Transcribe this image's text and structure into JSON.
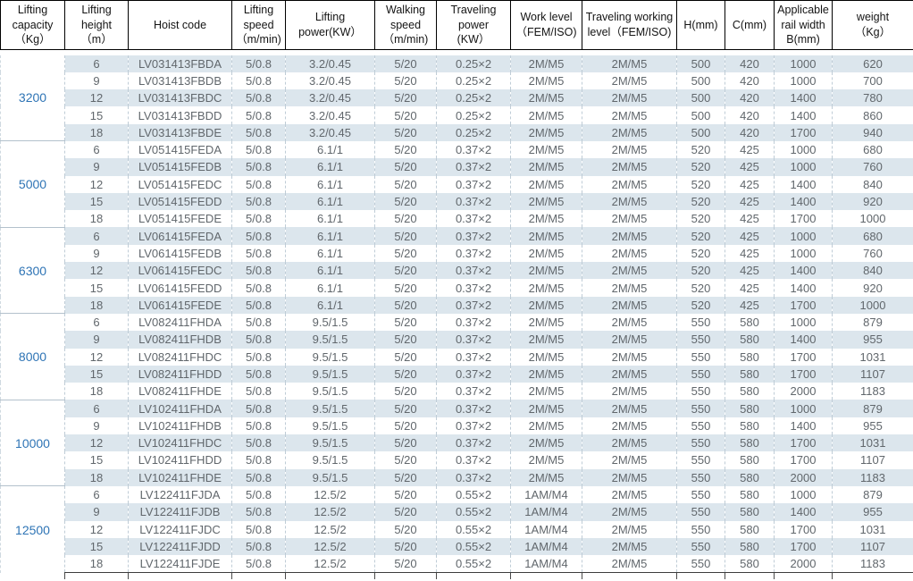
{
  "colors": {
    "accent_blue": "#2E74B5",
    "row_shade": "#DCE6ED",
    "body_text": "#61676C",
    "header_border": "#000000"
  },
  "table": {
    "headers": [
      "Lifting\ncapacity\n（Kg）",
      "Lifting\nheight\n（m）",
      "Hoist code",
      "Lifting\nspeed\n（m/min)",
      "Lifting\npower(KW）",
      "Walking\nspeed\n（m/min)",
      "Traveling\npower\n(KW）",
      "Work level\n（FEM/ISO)",
      "Traveling working\nlevel（FEM/ISO)",
      "H(mm)",
      "C(mm)",
      "Applicable\nrail width\nB(mm)",
      "weight\n（Kg）"
    ],
    "groups": [
      {
        "capacity": "3200",
        "rows": [
          [
            "6",
            "LV031413FBDA",
            "5/0.8",
            "3.2/0.45",
            "5/20",
            "0.25×2",
            "2M/M5",
            "2M/M5",
            "500",
            "420",
            "1000",
            "620"
          ],
          [
            "9",
            "LV031413FBDB",
            "5/0.8",
            "3.2/0.45",
            "5/20",
            "0.25×2",
            "2M/M5",
            "2M/M5",
            "500",
            "420",
            "1000",
            "700"
          ],
          [
            "12",
            "LV031413FBDC",
            "5/0.8",
            "3.2/0.45",
            "5/20",
            "0.25×2",
            "2M/M5",
            "2M/M5",
            "500",
            "420",
            "1400",
            "780"
          ],
          [
            "15",
            "LV031413FBDD",
            "5/0.8",
            "3.2/0.45",
            "5/20",
            "0.25×2",
            "2M/M5",
            "2M/M5",
            "500",
            "420",
            "1400",
            "860"
          ],
          [
            "18",
            "LV031413FBDE",
            "5/0.8",
            "3.2/0.45",
            "5/20",
            "0.25×2",
            "2M/M5",
            "2M/M5",
            "500",
            "420",
            "1700",
            "940"
          ]
        ]
      },
      {
        "capacity": "5000",
        "rows": [
          [
            "6",
            "LV051415FEDA",
            "5/0.8",
            "6.1/1",
            "5/20",
            "0.37×2",
            "2M/M5",
            "2M/M5",
            "520",
            "425",
            "1000",
            "680"
          ],
          [
            "9",
            "LV051415FEDB",
            "5/0.8",
            "6.1/1",
            "5/20",
            "0.37×2",
            "2M/M5",
            "2M/M5",
            "520",
            "425",
            "1000",
            "760"
          ],
          [
            "12",
            "LV051415FEDC",
            "5/0.8",
            "6.1/1",
            "5/20",
            "0.37×2",
            "2M/M5",
            "2M/M5",
            "520",
            "425",
            "1400",
            "840"
          ],
          [
            "15",
            "LV051415FEDD",
            "5/0.8",
            "6.1/1",
            "5/20",
            "0.37×2",
            "2M/M5",
            "2M/M5",
            "520",
            "425",
            "1400",
            "920"
          ],
          [
            "18",
            "LV051415FEDE",
            "5/0.8",
            "6.1/1",
            "5/20",
            "0.37×2",
            "2M/M5",
            "2M/M5",
            "520",
            "425",
            "1700",
            "1000"
          ]
        ]
      },
      {
        "capacity": "6300",
        "rows": [
          [
            "6",
            "LV061415FEDA",
            "5/0.8",
            "6.1/1",
            "5/20",
            "0.37×2",
            "2M/M5",
            "2M/M5",
            "520",
            "425",
            "1000",
            "680"
          ],
          [
            "9",
            "LV061415FEDB",
            "5/0.8",
            "6.1/1",
            "5/20",
            "0.37×2",
            "2M/M5",
            "2M/M5",
            "520",
            "425",
            "1000",
            "760"
          ],
          [
            "12",
            "LV061415FEDC",
            "5/0.8",
            "6.1/1",
            "5/20",
            "0.37×2",
            "2M/M5",
            "2M/M5",
            "520",
            "425",
            "1400",
            "840"
          ],
          [
            "15",
            "LV061415FEDD",
            "5/0.8",
            "6.1/1",
            "5/20",
            "0.37×2",
            "2M/M5",
            "2M/M5",
            "520",
            "425",
            "1400",
            "920"
          ],
          [
            "18",
            "LV061415FEDE",
            "5/0.8",
            "6.1/1",
            "5/20",
            "0.37×2",
            "2M/M5",
            "2M/M5",
            "520",
            "425",
            "1700",
            "1000"
          ]
        ]
      },
      {
        "capacity": "8000",
        "rows": [
          [
            "6",
            "LV082411FHDA",
            "5/0.8",
            "9.5/1.5",
            "5/20",
            "0.37×2",
            "2M/M5",
            "2M/M5",
            "550",
            "580",
            "1000",
            "879"
          ],
          [
            "9",
            "LV082411FHDB",
            "5/0.8",
            "9.5/1.5",
            "5/20",
            "0.37×2",
            "2M/M5",
            "2M/M5",
            "550",
            "580",
            "1400",
            "955"
          ],
          [
            "12",
            "LV082411FHDC",
            "5/0.8",
            "9.5/1.5",
            "5/20",
            "0.37×2",
            "2M/M5",
            "2M/M5",
            "550",
            "580",
            "1700",
            "1031"
          ],
          [
            "15",
            "LV082411FHDD",
            "5/0.8",
            "9.5/1.5",
            "5/20",
            "0.37×2",
            "2M/M5",
            "2M/M5",
            "550",
            "580",
            "1700",
            "1107"
          ],
          [
            "18",
            "LV082411FHDE",
            "5/0.8",
            "9.5/1.5",
            "5/20",
            "0.37×2",
            "2M/M5",
            "2M/M5",
            "550",
            "580",
            "2000",
            "1183"
          ]
        ]
      },
      {
        "capacity": "10000",
        "rows": [
          [
            "6",
            "LV102411FHDA",
            "5/0.8",
            "9.5/1.5",
            "5/20",
            "0.37×2",
            "2M/M5",
            "2M/M5",
            "550",
            "580",
            "1000",
            "879"
          ],
          [
            "9",
            "LV102411FHDB",
            "5/0.8",
            "9.5/1.5",
            "5/20",
            "0.37×2",
            "2M/M5",
            "2M/M5",
            "550",
            "580",
            "1400",
            "955"
          ],
          [
            "12",
            "LV102411FHDC",
            "5/0.8",
            "9.5/1.5",
            "5/20",
            "0.37×2",
            "2M/M5",
            "2M/M5",
            "550",
            "580",
            "1700",
            "1031"
          ],
          [
            "15",
            "LV102411FHDD",
            "5/0.8",
            "9.5/1.5",
            "5/20",
            "0.37×2",
            "2M/M5",
            "2M/M5",
            "550",
            "580",
            "1700",
            "1107"
          ],
          [
            "18",
            "LV102411FHDE",
            "5/0.8",
            "9.5/1.5",
            "5/20",
            "0.37×2",
            "2M/M5",
            "2M/M5",
            "550",
            "580",
            "2000",
            "1183"
          ]
        ]
      },
      {
        "capacity": "12500",
        "rows": [
          [
            "6",
            "LV122411FJDA",
            "5/0.8",
            "12.5/2",
            "5/20",
            "0.55×2",
            "1AM/M4",
            "2M/M5",
            "550",
            "580",
            "1000",
            "879"
          ],
          [
            "9",
            "LV122411FJDB",
            "5/0.8",
            "12.5/2",
            "5/20",
            "0.55×2",
            "1AM/M4",
            "2M/M5",
            "550",
            "580",
            "1400",
            "955"
          ],
          [
            "12",
            "LV122411FJDC",
            "5/0.8",
            "12.5/2",
            "5/20",
            "0.55×2",
            "1AM/M4",
            "2M/M5",
            "550",
            "580",
            "1700",
            "1031"
          ],
          [
            "15",
            "LV122411FJDD",
            "5/0.8",
            "12.5/2",
            "5/20",
            "0.55×2",
            "1AM/M4",
            "2M/M5",
            "550",
            "580",
            "1700",
            "1107"
          ],
          [
            "18",
            "LV122411FJDE",
            "5/0.8",
            "12.5/2",
            "5/20",
            "0.55×2",
            "1AM/M4",
            "2M/M5",
            "550",
            "580",
            "2000",
            "1183"
          ]
        ]
      }
    ]
  }
}
